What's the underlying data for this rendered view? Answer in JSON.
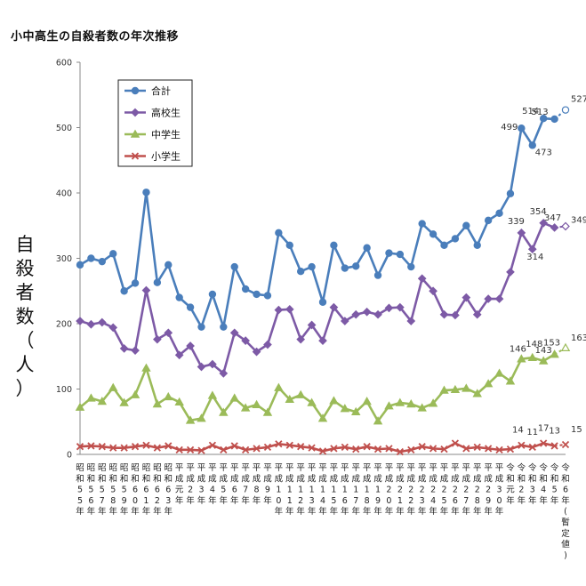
{
  "page": {
    "title": "小中高生の自殺者数の年次推移",
    "ylabel_chars": [
      "自",
      "殺",
      "者",
      "数",
      "（",
      "人",
      "）"
    ]
  },
  "chart_data": {
    "type": "line",
    "title": "小中高生の自殺者数の年次推移",
    "ylabel": "自殺者数（人）",
    "xlabel": "",
    "ylim": [
      0,
      600
    ],
    "yticks": [
      0,
      100,
      200,
      300,
      400,
      500,
      600
    ],
    "grid": false,
    "legend_position": "top-left",
    "categories": [
      "昭和55年",
      "昭和56年",
      "昭和57年",
      "昭和58年",
      "昭和59年",
      "昭和60年",
      "昭和61年",
      "昭和62年",
      "昭和63年",
      "平成元年",
      "平成2年",
      "平成3年",
      "平成4年",
      "平成5年",
      "平成6年",
      "平成7年",
      "平成8年",
      "平成9年",
      "平成10年",
      "平成11年",
      "平成12年",
      "平成13年",
      "平成14年",
      "平成15年",
      "平成16年",
      "平成17年",
      "平成18年",
      "平成19年",
      "平成20年",
      "平成21年",
      "平成22年",
      "平成23年",
      "平成24年",
      "平成25年",
      "平成26年",
      "平成27年",
      "平成28年",
      "平成29年",
      "平成30年",
      "令和元年",
      "令和2年",
      "令和3年",
      "令和4年",
      "令和5年",
      "令和6年(暫定値)"
    ],
    "series": [
      {
        "name": "合計",
        "color": "#4a7ebb",
        "marker": "circle",
        "values": [
          290,
          300,
          295,
          307,
          250,
          262,
          401,
          263,
          290,
          240,
          225,
          195,
          245,
          195,
          287,
          253,
          245,
          243,
          339,
          320,
          280,
          287,
          233,
          320,
          285,
          288,
          316,
          274,
          308,
          306,
          287,
          353,
          337,
          320,
          330,
          350,
          320,
          358,
          369,
          399,
          499,
          473,
          514,
          513,
          527
        ],
        "labels": {
          "40": "499",
          "41": "473",
          "42": "514",
          "43": "513",
          "44": "527"
        },
        "last_provisional": true
      },
      {
        "name": "高校生",
        "color": "#7d5aa6",
        "marker": "diamond",
        "values": [
          204,
          199,
          202,
          194,
          162,
          159,
          251,
          176,
          186,
          152,
          166,
          134,
          138,
          124,
          186,
          174,
          157,
          168,
          221,
          222,
          176,
          198,
          174,
          225,
          204,
          214,
          218,
          214,
          224,
          225,
          204,
          269,
          250,
          214,
          213,
          240,
          214,
          238,
          238,
          279,
          339,
          314,
          354,
          347,
          349
        ],
        "labels": {
          "40": "339",
          "41": "314",
          "42": "354",
          "43": "347",
          "44": "349"
        },
        "last_provisional": true
      },
      {
        "name": "中学生",
        "color": "#9bbb59",
        "marker": "triangle",
        "values": [
          72,
          86,
          81,
          102,
          79,
          91,
          132,
          77,
          88,
          80,
          52,
          55,
          90,
          64,
          86,
          71,
          76,
          64,
          102,
          84,
          91,
          79,
          55,
          82,
          70,
          65,
          81,
          51,
          74,
          79,
          77,
          71,
          78,
          98,
          99,
          101,
          93,
          108,
          124,
          112,
          146,
          148,
          143,
          153,
          163
        ],
        "labels": {
          "40": "146",
          "41": "148",
          "42": "143",
          "43": "153",
          "44": "163"
        },
        "last_provisional": true
      },
      {
        "name": "小学生",
        "color": "#c0504d",
        "marker": "x",
        "values": [
          12,
          13,
          12,
          10,
          10,
          12,
          14,
          10,
          13,
          7,
          7,
          6,
          14,
          7,
          13,
          7,
          9,
          11,
          16,
          14,
          12,
          10,
          5,
          9,
          11,
          8,
          12,
          8,
          9,
          4,
          7,
          12,
          9,
          8,
          17,
          9,
          11,
          9,
          7,
          8,
          14,
          11,
          17,
          13,
          15
        ],
        "labels": {
          "40": "14",
          "41": "11",
          "42": "17",
          "43": "13",
          "44": "15"
        },
        "last_provisional": true
      }
    ]
  }
}
